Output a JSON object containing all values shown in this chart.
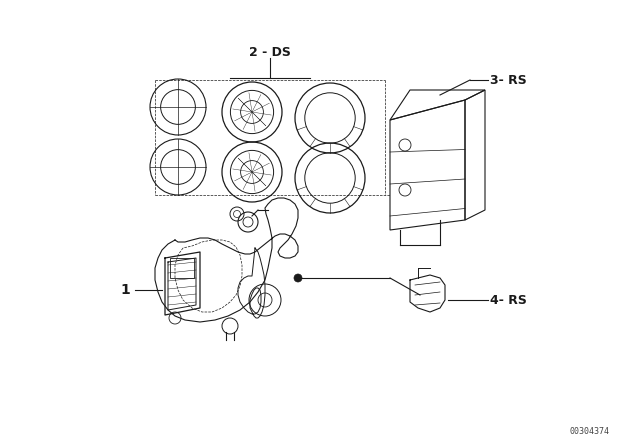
{
  "background_color": "#ffffff",
  "line_color": "#1a1a1a",
  "watermark": "00304374",
  "figsize": [
    6.4,
    4.48
  ],
  "dpi": 100,
  "label_2ds": "2 - DS",
  "label_3rs": "3- RS",
  "label_4rs": "4- RS",
  "label_1": "1"
}
